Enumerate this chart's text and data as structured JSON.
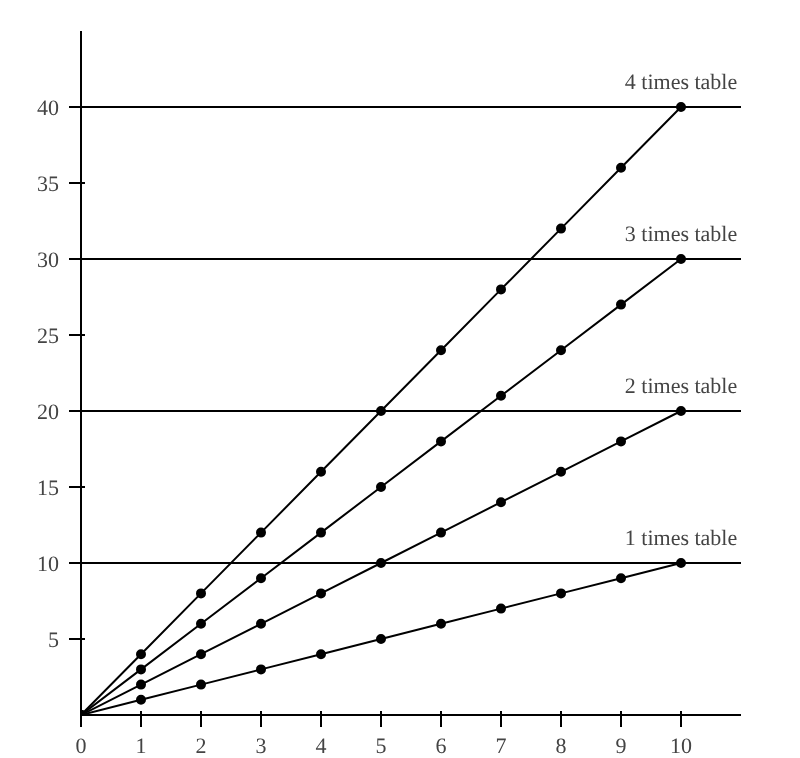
{
  "chart_data": {
    "type": "line",
    "x": [
      0,
      1,
      2,
      3,
      4,
      5,
      6,
      7,
      8,
      9,
      10
    ],
    "series": [
      {
        "name": "4 times table",
        "color": "#000000",
        "values": [
          0,
          4,
          8,
          12,
          16,
          20,
          24,
          28,
          32,
          36,
          40
        ]
      },
      {
        "name": "3 times table",
        "color": "#000000",
        "values": [
          0,
          3,
          6,
          9,
          12,
          15,
          18,
          21,
          24,
          27,
          30
        ]
      },
      {
        "name": "2 times table",
        "color": "#000000",
        "values": [
          0,
          2,
          4,
          6,
          8,
          10,
          12,
          14,
          16,
          18,
          20
        ]
      },
      {
        "name": "1 times table",
        "color": "#000000",
        "values": [
          0,
          1,
          2,
          3,
          4,
          5,
          6,
          7,
          8,
          9,
          10
        ]
      }
    ],
    "xlim": [
      0,
      11
    ],
    "ylim": [
      0,
      45
    ],
    "xticks": [
      0,
      1,
      2,
      3,
      4,
      5,
      6,
      7,
      8,
      9,
      10
    ],
    "yticks": [
      5,
      10,
      15,
      20,
      25,
      30,
      35,
      40
    ],
    "ref_lines": [
      {
        "axis": "y",
        "value": 10,
        "color": "#000000"
      },
      {
        "axis": "y",
        "value": 20,
        "color": "#000000"
      },
      {
        "axis": "y",
        "value": 30,
        "color": "#000000"
      },
      {
        "axis": "y",
        "value": 40,
        "color": "#000000"
      }
    ],
    "grid": false,
    "legend": false,
    "marker": "circle",
    "line_style": "solid"
  }
}
